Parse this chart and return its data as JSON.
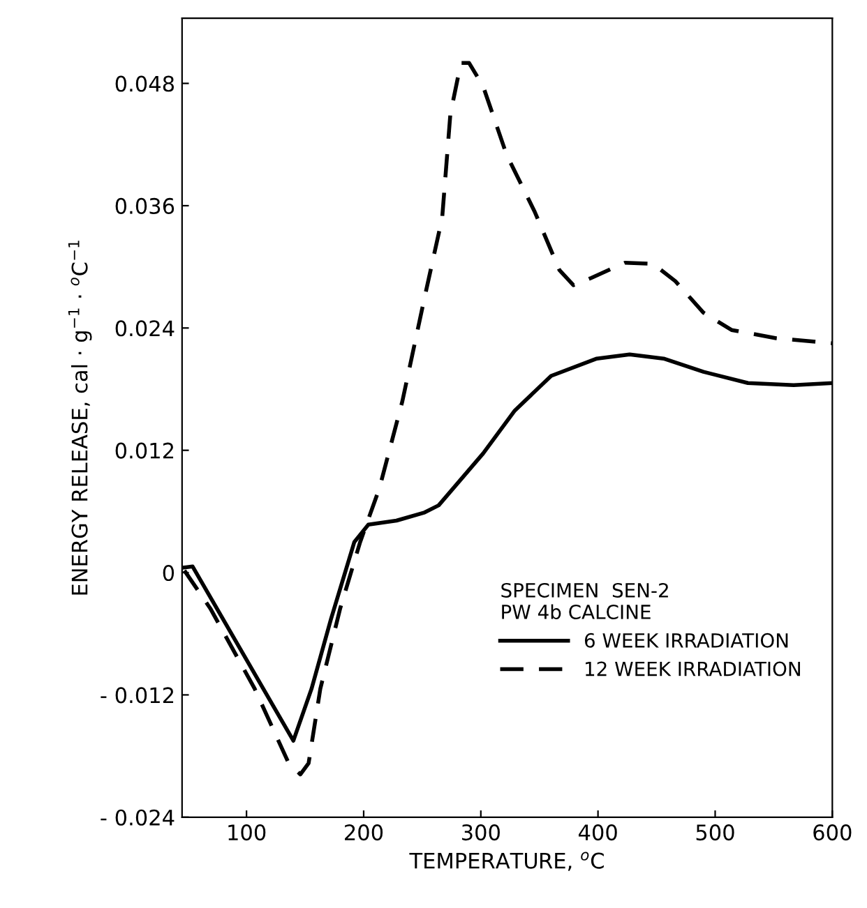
{
  "chart_data": {
    "type": "line",
    "xlabel": "TEMPERATURE, $^{o}$C",
    "ylabel": "ENERGY RELEASE, cal · g$^{−1}$ · $^{o}$C$^{−1}$",
    "legend_title": "SPECIMEN  SEN-2\nPW 4b CALCINE",
    "legend": "bottom right",
    "grid": false,
    "marker": "none",
    "xlim": [
      45,
      600
    ],
    "xticks": [
      100,
      200,
      300,
      400,
      500,
      600
    ],
    "ylim": [
      -0.024,
      0.0544
    ],
    "yticks": [
      {
        "value": -0.024,
        "label": "- 0.024"
      },
      {
        "value": -0.012,
        "label": "- 0.012"
      },
      0,
      0.012,
      0.024,
      0.036,
      0.048
    ],
    "series": [
      {
        "name": "6 WEEK IRRADIATION",
        "color": "#000000",
        "line_style": "solid",
        "x": [
          47,
          54,
          140,
          155.5,
          172,
          192,
          204,
          228,
          252,
          264,
          302,
          329,
          360,
          399,
          427,
          456,
          490,
          528,
          567,
          600
        ],
        "values": [
          0.0005,
          0.0006,
          -0.0165,
          -0.0114,
          -0.0046,
          0.003,
          0.0047,
          0.0051,
          0.0059,
          0.0066,
          0.0117,
          0.0159,
          0.0193,
          0.021,
          0.0214,
          0.021,
          0.0197,
          0.0186,
          0.0184,
          0.0186
        ]
      },
      {
        "name": "12 WEEK IRRADIATION",
        "color": "#000000",
        "line_style": "dashed",
        "x": [
          47,
          69,
          107,
          136,
          146,
          153,
          163,
          180,
          197,
          213.5,
          233,
          252,
          267,
          274,
          283,
          290,
          302,
          322,
          346,
          367,
          379,
          394,
          423,
          447,
          466,
          490,
          514,
          552,
          600
        ],
        "values": [
          0.0002,
          -0.0035,
          -0.0114,
          -0.0187,
          -0.0198,
          -0.0187,
          -0.0114,
          -0.0035,
          0.003,
          0.0083,
          0.0168,
          0.027,
          0.0348,
          0.045,
          0.05,
          0.05,
          0.0477,
          0.041,
          0.0354,
          0.0297,
          0.0282,
          0.0289,
          0.0304,
          0.0303,
          0.0286,
          0.0255,
          0.0238,
          0.023,
          0.0225
        ]
      }
    ]
  }
}
